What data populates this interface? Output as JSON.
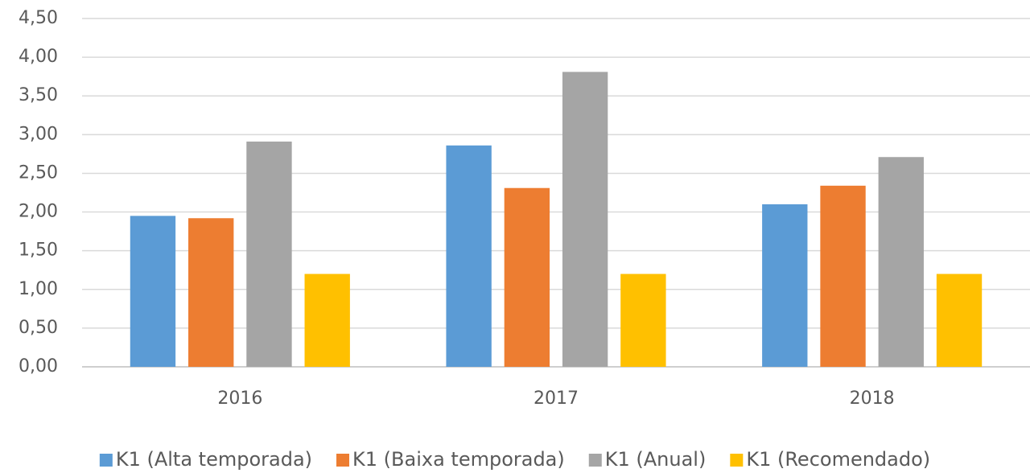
{
  "chart_data": {
    "type": "bar",
    "categories": [
      "2016",
      "2017",
      "2018"
    ],
    "series": [
      {
        "name": "K1 (Alta temporada)",
        "color": "#5b9bd5",
        "values": [
          1.95,
          2.86,
          2.1
        ]
      },
      {
        "name": "K1 (Baixa temporada)",
        "color": "#ed7d31",
        "values": [
          1.92,
          2.31,
          2.34
        ]
      },
      {
        "name": "K1 (Anual)",
        "color": "#a5a5a5",
        "values": [
          2.91,
          3.81,
          2.71
        ]
      },
      {
        "name": "K1 (Recomendado)",
        "color": "#ffc000",
        "values": [
          1.2,
          1.2,
          1.2
        ]
      }
    ],
    "ylim": [
      0,
      4.5
    ],
    "yticks": [
      {
        "value": 0,
        "label": "0,00"
      },
      {
        "value": 0.5,
        "label": "0,50"
      },
      {
        "value": 1,
        "label": "1,00"
      },
      {
        "value": 1.5,
        "label": "1,50"
      },
      {
        "value": 2,
        "label": "2,00"
      },
      {
        "value": 2.5,
        "label": "2,50"
      },
      {
        "value": 3,
        "label": "3,00"
      },
      {
        "value": 3.5,
        "label": "3,50"
      },
      {
        "value": 4,
        "label": "4,00"
      },
      {
        "value": 4.5,
        "label": "4,50"
      }
    ],
    "grid": true,
    "legend": "bottom"
  }
}
